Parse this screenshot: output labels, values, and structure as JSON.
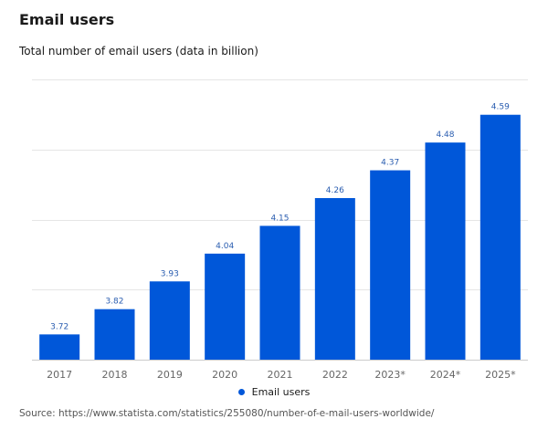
{
  "colors": {
    "bar": "#0057d9",
    "grid": "#e6e6e6",
    "axis": "#cccccc",
    "tick_text": "#666666",
    "value_label": "#2a5db0"
  },
  "chart_data": {
    "type": "bar",
    "title": "Email users",
    "subtitle": "Total number of email users (data in billion)",
    "categories": [
      "2017",
      "2018",
      "2019",
      "2020",
      "2021",
      "2022",
      "2023*",
      "2024*",
      "2025*"
    ],
    "series": [
      {
        "name": "Email users",
        "values": [
          3.72,
          3.82,
          3.93,
          4.04,
          4.15,
          4.26,
          4.37,
          4.48,
          4.59
        ]
      }
    ],
    "ylim": [
      3.62,
      4.73
    ],
    "grid": true,
    "legend": "bottom-center",
    "source": "Source: https://www.statista.com/statistics/255080/number-of-e-mail-users-worldwide/"
  }
}
